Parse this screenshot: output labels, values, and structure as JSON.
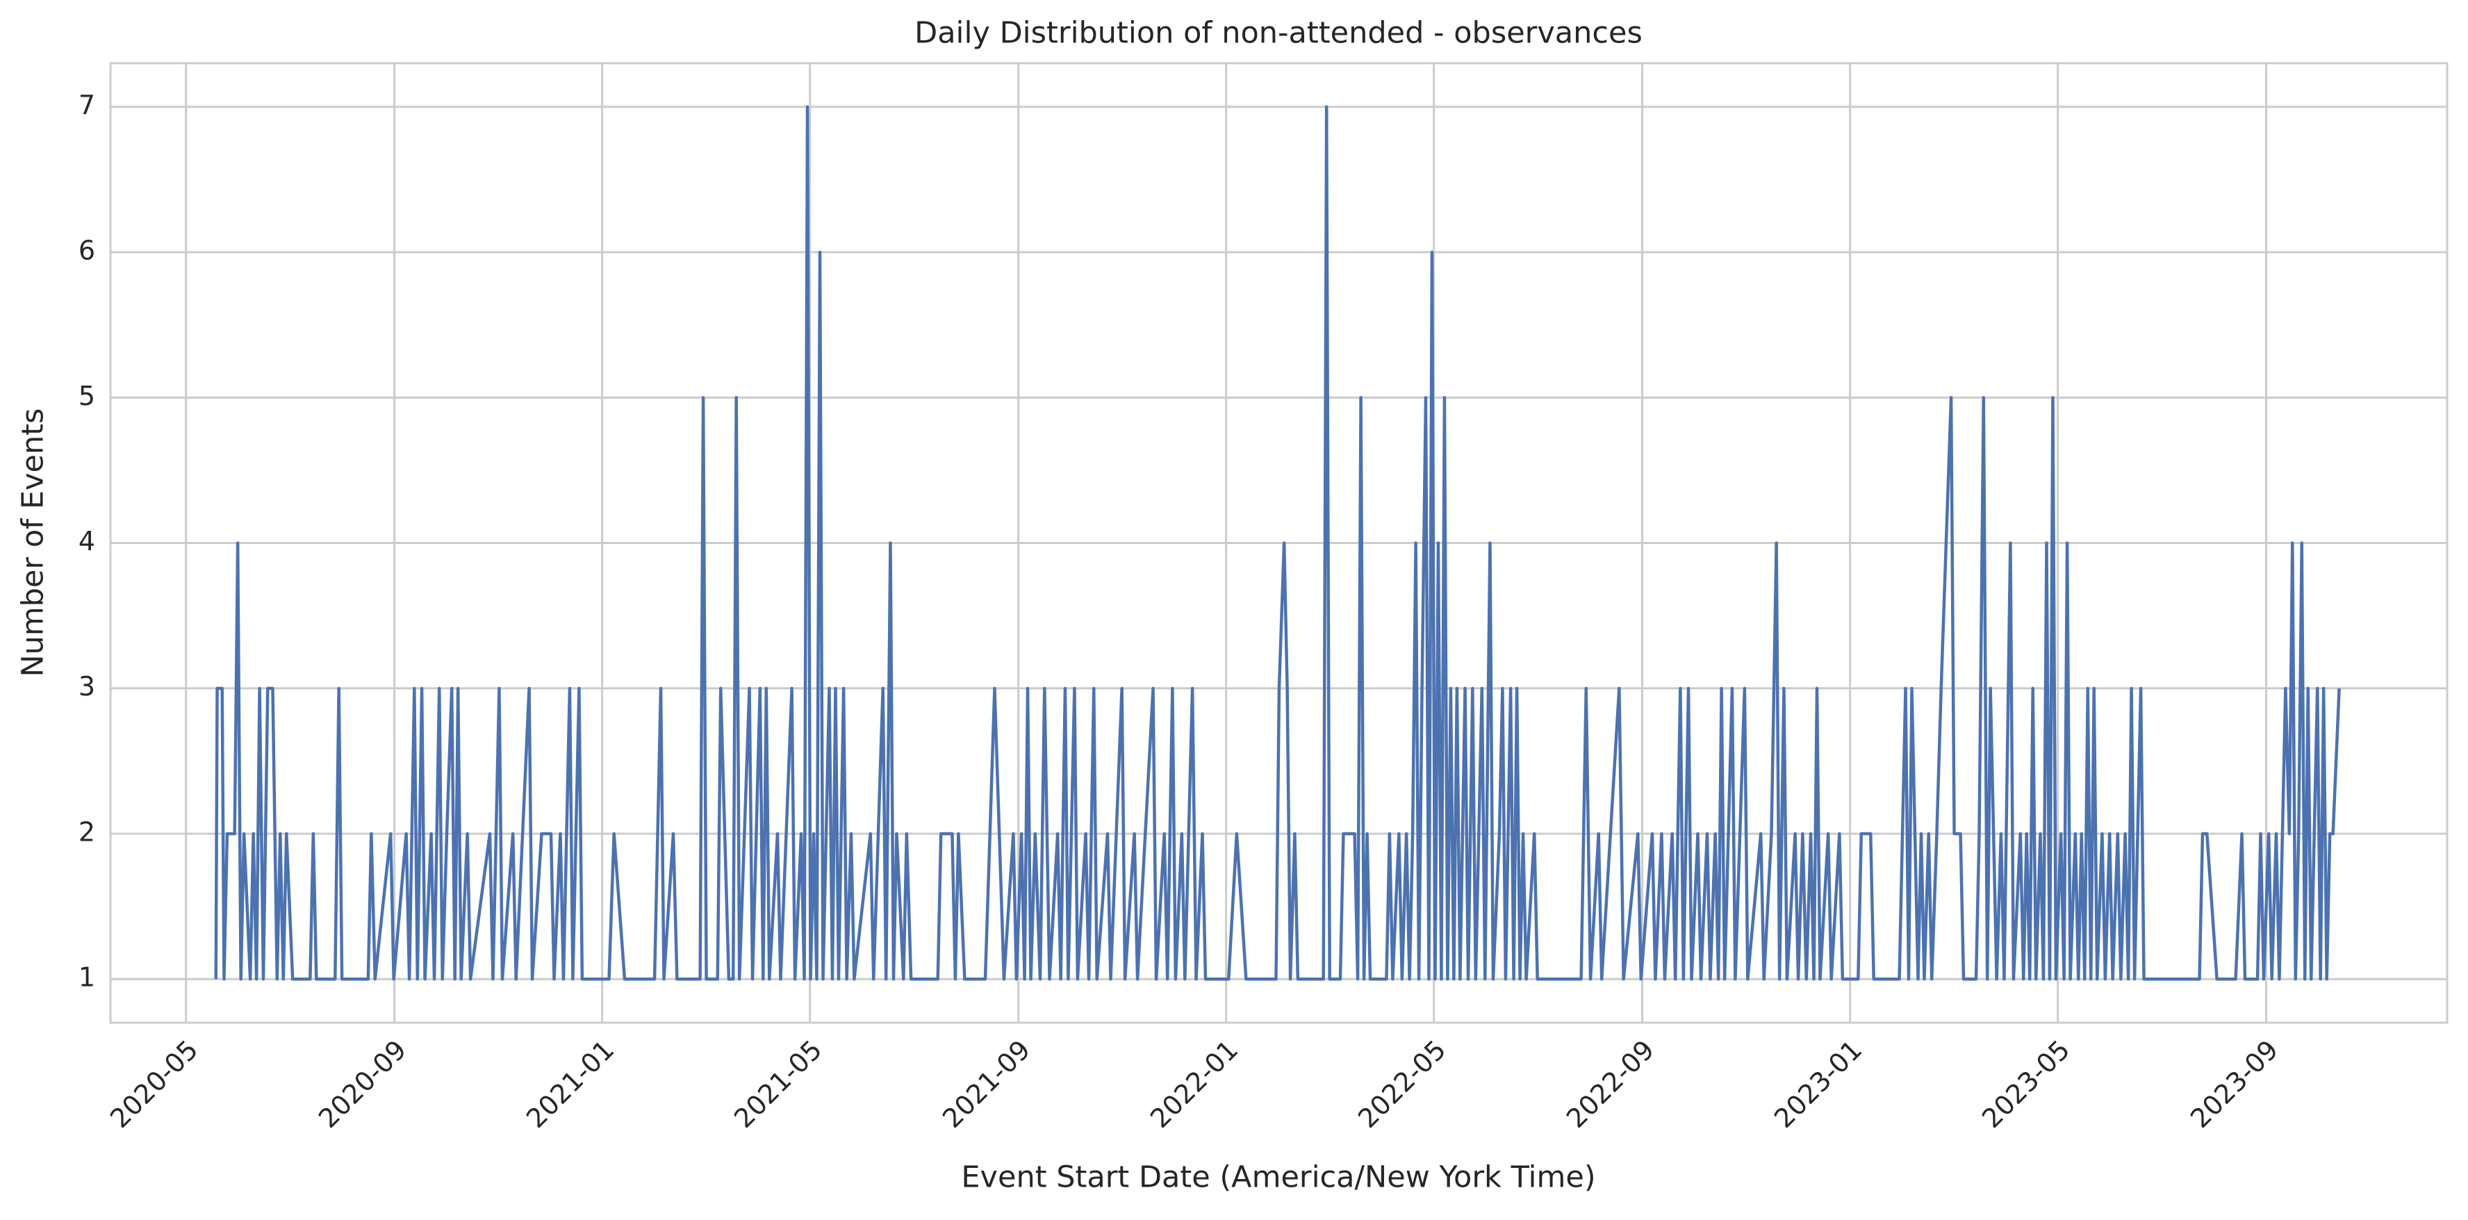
{
  "chart_data": {
    "type": "line",
    "title": "Daily Distribution of non-attended - observances",
    "xlabel": "Event Start Date (America/New York Time)",
    "ylabel": "Number of Events",
    "color": "#4c72b0",
    "grid": true,
    "xlim": [
      2020.212,
      2023.957
    ],
    "ylim": [
      0.7,
      7.3
    ],
    "yticks": [
      1,
      2,
      3,
      4,
      5,
      6,
      7
    ],
    "xticks": [
      {
        "value": 2020.333,
        "label": "2020-05"
      },
      {
        "value": 2020.667,
        "label": "2020-09"
      },
      {
        "value": 2021.0,
        "label": "2021-01"
      },
      {
        "value": 2021.333,
        "label": "2021-05"
      },
      {
        "value": 2021.667,
        "label": "2021-09"
      },
      {
        "value": 2022.0,
        "label": "2022-01"
      },
      {
        "value": 2022.333,
        "label": "2022-05"
      },
      {
        "value": 2022.667,
        "label": "2022-09"
      },
      {
        "value": 2023.0,
        "label": "2023-01"
      },
      {
        "value": 2023.333,
        "label": "2023-05"
      },
      {
        "value": 2023.667,
        "label": "2023-09"
      }
    ],
    "x": [
      2020.381,
      2020.383,
      2020.391,
      2020.394,
      2020.399,
      2020.411,
      2020.416,
      2020.421,
      2020.426,
      2020.436,
      2020.441,
      2020.446,
      2020.451,
      2020.457,
      2020.464,
      2020.472,
      2020.479,
      2020.484,
      2020.489,
      2020.494,
      2020.504,
      2020.532,
      2020.537,
      2020.542,
      2020.572,
      2020.578,
      2020.583,
      2020.625,
      2020.63,
      2020.636,
      2020.661,
      2020.666,
      2020.686,
      2020.691,
      2020.699,
      2020.704,
      2020.711,
      2020.716,
      2020.726,
      2020.731,
      2020.739,
      2020.744,
      2020.751,
      2020.759,
      2020.764,
      2020.769,
      2020.774,
      2020.784,
      2020.789,
      2020.82,
      2020.825,
      2020.835,
      2020.84,
      2020.857,
      2020.862,
      2020.883,
      2020.888,
      2020.903,
      2020.918,
      2020.923,
      2020.933,
      2020.938,
      2020.948,
      2020.953,
      2020.963,
      2020.968,
      2021.011,
      2021.019,
      2021.036,
      2021.084,
      2021.089,
      2021.094,
      2021.099,
      2021.114,
      2021.12,
      2021.157,
      2021.162,
      2021.167,
      2021.185,
      2021.19,
      2021.203,
      2021.21,
      2021.215,
      2021.22,
      2021.236,
      2021.241,
      2021.253,
      2021.258,
      2021.263,
      2021.268,
      2021.281,
      2021.286,
      2021.304,
      2021.309,
      2021.319,
      2021.324,
      2021.329,
      2021.334,
      2021.339,
      2021.344,
      2021.349,
      2021.354,
      2021.364,
      2021.369,
      2021.374,
      2021.379,
      2021.387,
      2021.392,
      2021.399,
      2021.404,
      2021.43,
      2021.435,
      2021.45,
      2021.455,
      2021.462,
      2021.467,
      2021.472,
      2021.483,
      2021.488,
      2021.495,
      2021.538,
      2021.543,
      2021.561,
      2021.566,
      2021.571,
      2021.581,
      2021.614,
      2021.629,
      2021.644,
      2021.659,
      2021.664,
      2021.672,
      2021.677,
      2021.682,
      2021.687,
      2021.694,
      2021.702,
      2021.709,
      2021.717,
      2021.73,
      2021.735,
      2021.742,
      2021.747,
      2021.757,
      2021.762,
      2021.775,
      2021.78,
      2021.788,
      2021.793,
      2021.81,
      2021.815,
      2021.833,
      2021.838,
      2021.853,
      2021.858,
      2021.883,
      2021.888,
      2021.901,
      2021.906,
      2021.914,
      2021.919,
      2021.929,
      2021.934,
      2021.946,
      2021.952,
      2021.962,
      2021.967,
      2022.004,
      2022.017,
      2022.032,
      2022.08,
      2022.085,
      2022.093,
      2022.098,
      2022.103,
      2022.11,
      2022.115,
      2022.156,
      2022.161,
      2022.166,
      2022.183,
      2022.188,
      2022.206,
      2022.211,
      2022.216,
      2022.221,
      2022.226,
      2022.231,
      2022.257,
      2022.262,
      2022.267,
      2022.277,
      2022.282,
      2022.289,
      2022.294,
      2022.299,
      2022.304,
      2022.309,
      2022.314,
      2022.32,
      2022.325,
      2022.33,
      2022.335,
      2022.34,
      2022.345,
      2022.35,
      2022.355,
      2022.36,
      2022.365,
      2022.37,
      2022.375,
      2022.383,
      2022.388,
      2022.395,
      2022.4,
      2022.41,
      2022.415,
      2022.423,
      2022.428,
      2022.438,
      2022.443,
      2022.448,
      2022.456,
      2022.461,
      2022.466,
      2022.471,
      2022.476,
      2022.481,
      2022.494,
      2022.499,
      2022.569,
      2022.577,
      2022.584,
      2022.597,
      2022.602,
      2022.63,
      2022.637,
      2022.66,
      2022.665,
      2022.683,
      2022.688,
      2022.698,
      2022.703,
      2022.715,
      2022.72,
      2022.728,
      2022.733,
      2022.741,
      2022.746,
      2022.756,
      2022.761,
      2022.771,
      2022.776,
      2022.784,
      2022.789,
      2022.794,
      2022.799,
      2022.811,
      2022.816,
      2022.831,
      2022.836,
      2022.857,
      2022.862,
      2022.874,
      2022.882,
      2022.887,
      2022.894,
      2022.899,
      2022.912,
      2022.917,
      2022.924,
      2022.93,
      2022.937,
      2022.942,
      2022.947,
      2022.952,
      2022.965,
      2022.97,
      2022.983,
      2022.988,
      2023.013,
      2023.018,
      2023.033,
      2023.038,
      2023.079,
      2023.084,
      2023.089,
      2023.094,
      2023.099,
      2023.104,
      2023.109,
      2023.114,
      2023.119,
      2023.126,
      2023.131,
      2023.139,
      2023.146,
      2023.154,
      2023.162,
      2023.167,
      2023.177,
      2023.182,
      2023.202,
      2023.207,
      2023.214,
      2023.22,
      2023.225,
      2023.23,
      2023.235,
      2023.242,
      2023.247,
      2023.257,
      2023.262,
      2023.273,
      2023.278,
      2023.283,
      2023.288,
      2023.293,
      2023.298,
      2023.305,
      2023.31,
      2023.315,
      2023.32,
      2023.325,
      2023.33,
      2023.338,
      2023.343,
      2023.348,
      2023.353,
      2023.361,
      2023.366,
      2023.371,
      2023.376,
      2023.381,
      2023.386,
      2023.391,
      2023.396,
      2023.404,
      2023.409,
      2023.416,
      2023.421,
      2023.429,
      2023.434,
      2023.441,
      2023.446,
      2023.451,
      2023.456,
      2023.461,
      2023.466,
      2023.471,
      2023.56,
      2023.565,
      2023.572,
      2023.588,
      2023.618,
      2023.628,
      2023.633,
      2023.653,
      2023.658,
      2023.663,
      2023.671,
      2023.676,
      2023.683,
      2023.688,
      2023.698,
      2023.704,
      2023.709,
      2023.714,
      2023.719,
      2023.724,
      2023.729,
      2023.734,
      2023.739,
      2023.744,
      2023.749,
      2023.754,
      2023.759,
      2023.764,
      2023.769,
      2023.774,
      2023.784
    ],
    "values": [
      1,
      3,
      3,
      1,
      2,
      2,
      4,
      1,
      2,
      1,
      2,
      1,
      3,
      1,
      3,
      3,
      1,
      2,
      1,
      2,
      1,
      1,
      2,
      1,
      1,
      3,
      1,
      1,
      2,
      1,
      2,
      1,
      2,
      1,
      3,
      1,
      3,
      1,
      2,
      1,
      3,
      1,
      2,
      3,
      1,
      3,
      1,
      2,
      1,
      2,
      1,
      3,
      1,
      2,
      1,
      3,
      1,
      2,
      2,
      1,
      2,
      1,
      3,
      1,
      3,
      1,
      1,
      2,
      1,
      1,
      2,
      3,
      1,
      2,
      1,
      1,
      5,
      1,
      1,
      3,
      1,
      1,
      5,
      1,
      3,
      1,
      3,
      1,
      3,
      1,
      2,
      1,
      3,
      1,
      2,
      1,
      7,
      1,
      2,
      1,
      6,
      1,
      3,
      1,
      3,
      1,
      3,
      1,
      2,
      1,
      2,
      1,
      3,
      1,
      4,
      1,
      2,
      1,
      2,
      1,
      1,
      2,
      2,
      1,
      2,
      1,
      1,
      3,
      1,
      2,
      1,
      2,
      1,
      3,
      1,
      2,
      1,
      3,
      1,
      2,
      1,
      3,
      1,
      3,
      1,
      2,
      1,
      3,
      1,
      2,
      1,
      3,
      1,
      2,
      1,
      3,
      1,
      2,
      1,
      3,
      1,
      2,
      1,
      3,
      1,
      2,
      1,
      1,
      2,
      1,
      1,
      3,
      4,
      3,
      1,
      2,
      1,
      1,
      7,
      1,
      1,
      2,
      2,
      1,
      5,
      1,
      2,
      1,
      1,
      2,
      1,
      2,
      1,
      2,
      1,
      2,
      4,
      1,
      3,
      5,
      1,
      6,
      1,
      4,
      1,
      5,
      1,
      3,
      1,
      3,
      1,
      3,
      1,
      3,
      1,
      3,
      1,
      4,
      1,
      2,
      3,
      1,
      3,
      1,
      3,
      1,
      2,
      1,
      2,
      1,
      1,
      3,
      1,
      2,
      1,
      3,
      1,
      2,
      1,
      2,
      1,
      2,
      1,
      2,
      1,
      3,
      1,
      3,
      1,
      2,
      1,
      2,
      1,
      2,
      1,
      3,
      1,
      3,
      1,
      3,
      1,
      2,
      1,
      2,
      4,
      1,
      3,
      1,
      2,
      1,
      2,
      1,
      2,
      1,
      3,
      1,
      2,
      1,
      2,
      1,
      1,
      2,
      2,
      1,
      1,
      2,
      3,
      1,
      3,
      2,
      1,
      2,
      1,
      2,
      1,
      2,
      3,
      4,
      5,
      2,
      2,
      1,
      1,
      2,
      5,
      1,
      3,
      2,
      1,
      2,
      1,
      4,
      1,
      2,
      1,
      2,
      1,
      3,
      1,
      2,
      1,
      4,
      1,
      5,
      1,
      2,
      1,
      4,
      1,
      2,
      1,
      2,
      1,
      3,
      1,
      3,
      1,
      2,
      1,
      2,
      1,
      2,
      1,
      2,
      1,
      3,
      1,
      2,
      3,
      1,
      1,
      2,
      2,
      1,
      1,
      2,
      1,
      1,
      2,
      1,
      2,
      1,
      2,
      1,
      3,
      2,
      4,
      1,
      2,
      4,
      1,
      3,
      1,
      2,
      3,
      1,
      3,
      1,
      2,
      2,
      3
    ]
  }
}
